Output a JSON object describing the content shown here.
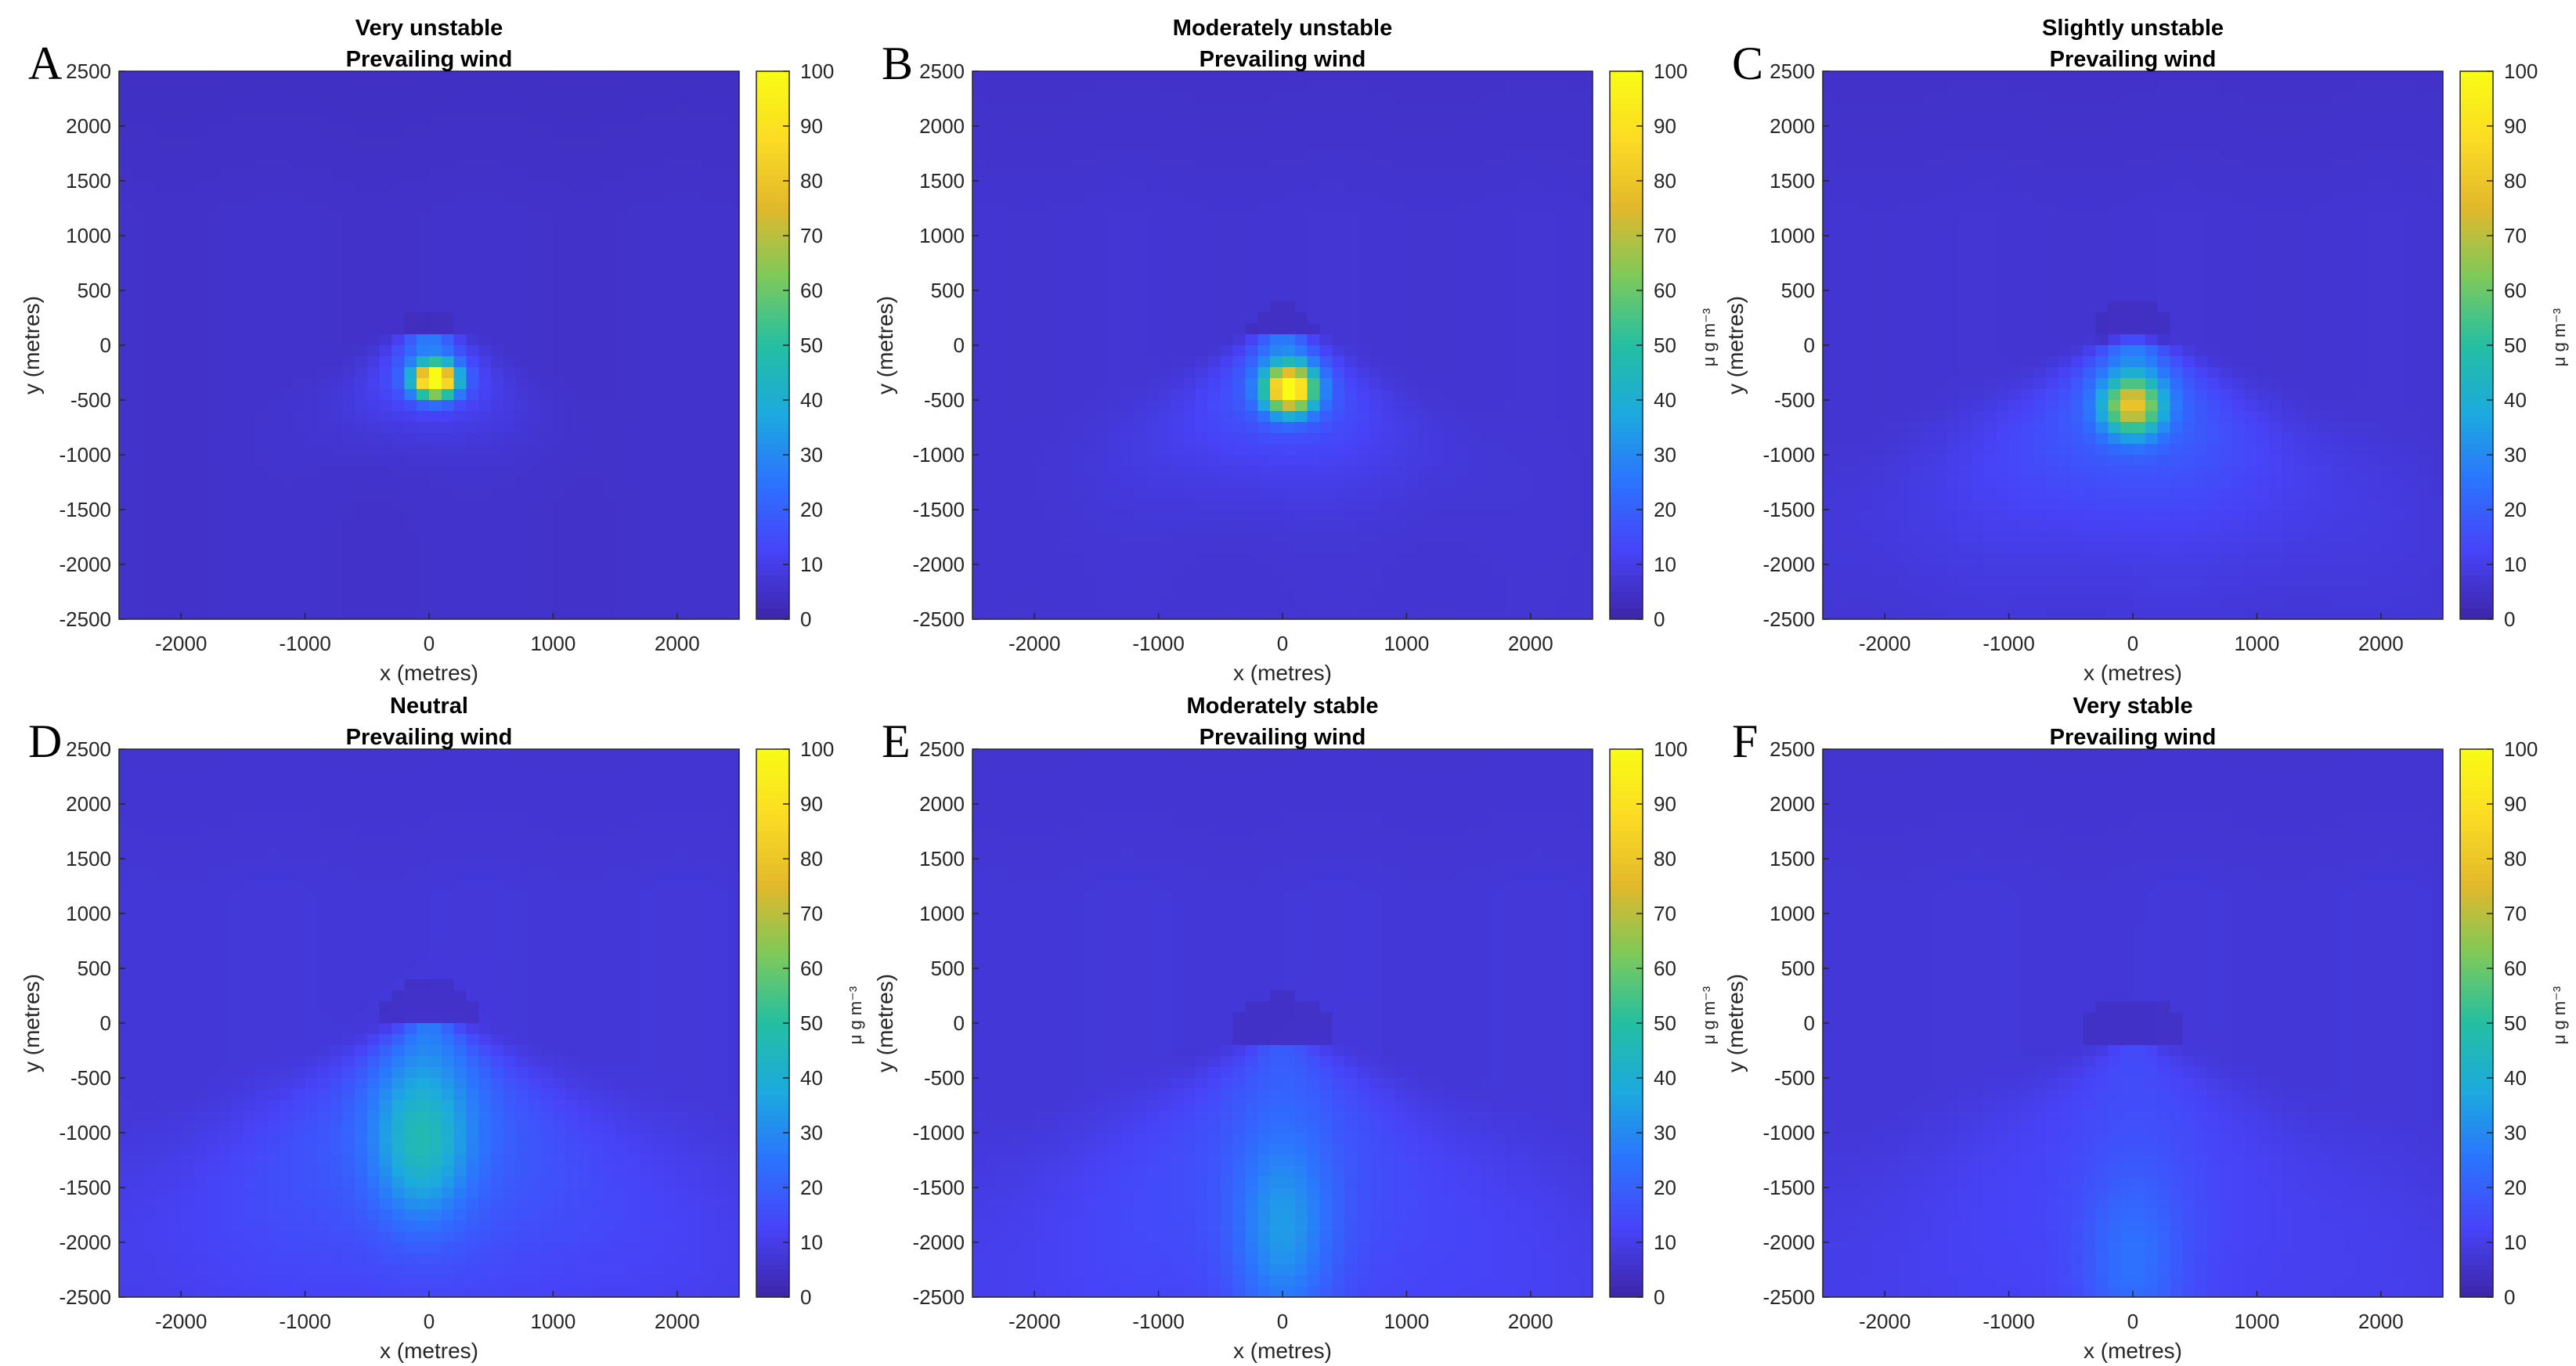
{
  "figure": {
    "colorbar_label": "μ g m⁻³",
    "x_label": "x (metres)",
    "y_label": "y (metres)",
    "colormap": [
      "#3e26a8",
      "#4743f8",
      "#2c73ff",
      "#1caadf",
      "#24bfa2",
      "#7dc95a",
      "#e2b82c",
      "#fbdc24",
      "#f9fb15"
    ]
  },
  "chart_data": [
    {
      "type": "heatmap",
      "letter": "A",
      "title": [
        "Very unstable",
        "Prevailing wind"
      ],
      "xlabel": "x (metres)",
      "ylabel": "y (metres)",
      "xlim": [
        -2500,
        2500
      ],
      "ylim": [
        -2500,
        2500
      ],
      "xticks": [
        -2000,
        -1000,
        0,
        1000,
        2000
      ],
      "yticks": [
        2500,
        2000,
        1500,
        1000,
        500,
        0,
        -500,
        -1000,
        -1500,
        -2000,
        -2500
      ],
      "colorbar": {
        "range": [
          0,
          100
        ],
        "ticks": [
          100,
          90,
          80,
          70,
          60,
          50,
          40,
          30,
          20,
          10,
          0
        ],
        "label": ""
      },
      "field": {
        "background": 4,
        "peak": 100,
        "peak_center": [
          50,
          -320
        ],
        "peak_spread": [
          170,
          150
        ],
        "plume_amp": 22,
        "plume_length": 260,
        "plume_width": 0.5,
        "wake_center": [
          0,
          120
        ],
        "wake_radius": 220
      }
    },
    {
      "type": "heatmap",
      "letter": "B",
      "title": [
        "Moderately unstable",
        "Prevailing wind"
      ],
      "xlabel": "x (metres)",
      "ylabel": "y (metres)",
      "xlim": [
        -2500,
        2500
      ],
      "ylim": [
        -2500,
        2500
      ],
      "xticks": [
        -2000,
        -1000,
        0,
        1000,
        2000
      ],
      "yticks": [
        2500,
        2000,
        1500,
        1000,
        500,
        0,
        -500,
        -1000,
        -1500,
        -2000,
        -2500
      ],
      "colorbar": {
        "range": [
          0,
          100
        ],
        "ticks": [
          100,
          90,
          80,
          70,
          60,
          50,
          40,
          30,
          20,
          10,
          0
        ],
        "label": "μ g m⁻³"
      },
      "field": {
        "background": 5,
        "peak": 88,
        "peak_center": [
          60,
          -400
        ],
        "peak_spread": [
          200,
          210
        ],
        "plume_amp": 20,
        "plume_length": 620,
        "plume_width": 0.62,
        "wake_center": [
          0,
          110
        ],
        "wake_radius": 270
      }
    },
    {
      "type": "heatmap",
      "letter": "C",
      "title": [
        "Slightly unstable",
        "Prevailing wind"
      ],
      "xlabel": "x (metres)",
      "ylabel": "y (metres)",
      "xlim": [
        -2500,
        2500
      ],
      "ylim": [
        -2500,
        2500
      ],
      "xticks": [
        -2000,
        -1000,
        0,
        1000,
        2000
      ],
      "yticks": [
        2500,
        2000,
        1500,
        1000,
        500,
        0,
        -500,
        -1000,
        -1500,
        -2000,
        -2500
      ],
      "colorbar": {
        "range": [
          0,
          100
        ],
        "ticks": [
          100,
          90,
          80,
          70,
          60,
          50,
          40,
          30,
          20,
          10,
          0
        ],
        "label": "μ g m⁻³"
      },
      "field": {
        "background": 5,
        "peak": 58,
        "peak_center": [
          0,
          -550
        ],
        "peak_spread": [
          230,
          260
        ],
        "plume_amp": 20,
        "plume_length": 1100,
        "plume_width": 0.75,
        "wake_center": [
          0,
          60
        ],
        "wake_radius": 330
      }
    },
    {
      "type": "heatmap",
      "letter": "D",
      "title": [
        "Neutral",
        "Prevailing wind"
      ],
      "xlabel": "x (metres)",
      "ylabel": "y (metres)",
      "xlim": [
        -2500,
        2500
      ],
      "ylim": [
        -2500,
        2500
      ],
      "xticks": [
        -2000,
        -1000,
        0,
        1000,
        2000
      ],
      "yticks": [
        2500,
        2000,
        1500,
        1000,
        500,
        0,
        -500,
        -1000,
        -1500,
        -2000,
        -2500
      ],
      "colorbar": {
        "range": [
          0,
          100
        ],
        "ticks": [
          100,
          90,
          80,
          70,
          60,
          50,
          40,
          30,
          20,
          10,
          0
        ],
        "label": "μ g m⁻³"
      },
      "field": {
        "background": 6,
        "peak": 26,
        "peak_center": [
          -60,
          -1100
        ],
        "peak_spread": [
          380,
          700
        ],
        "plume_amp": 17,
        "plume_length": 1900,
        "plume_width": 0.85,
        "wake_center": [
          0,
          0
        ],
        "wake_radius": 420
      }
    },
    {
      "type": "heatmap",
      "letter": "E",
      "title": [
        "Moderately stable",
        "Prevailing wind"
      ],
      "xlabel": "x (metres)",
      "ylabel": "y (metres)",
      "xlim": [
        -2500,
        2500
      ],
      "ylim": [
        -2500,
        2500
      ],
      "xticks": [
        -2000,
        -1000,
        0,
        1000,
        2000
      ],
      "yticks": [
        2500,
        2000,
        1500,
        1000,
        500,
        0,
        -500,
        -1000,
        -1500,
        -2000,
        -2500
      ],
      "colorbar": {
        "range": [
          0,
          100
        ],
        "ticks": [
          100,
          90,
          80,
          70,
          60,
          50,
          40,
          30,
          20,
          10,
          0
        ],
        "label": "μ g m⁻³"
      },
      "field": {
        "background": 6,
        "peak": 19,
        "peak_center": [
          0,
          -1900
        ],
        "peak_spread": [
          380,
          900
        ],
        "plume_amp": 11,
        "plume_length": 2600,
        "plume_width": 0.9,
        "wake_center": [
          0,
          -150
        ],
        "wake_radius": 420
      }
    },
    {
      "type": "heatmap",
      "letter": "F",
      "title": [
        "Very stable",
        "Prevailing wind"
      ],
      "xlabel": "x (metres)",
      "ylabel": "y (metres)",
      "xlim": [
        -2500,
        2500
      ],
      "ylim": [
        -2500,
        2500
      ],
      "xticks": [
        -2000,
        -1000,
        0,
        1000,
        2000
      ],
      "yticks": [
        2500,
        2000,
        1500,
        1000,
        500,
        0,
        -500,
        -1000,
        -1500,
        -2000,
        -2500
      ],
      "colorbar": {
        "range": [
          0,
          100
        ],
        "ticks": [
          100,
          90,
          80,
          70,
          60,
          50,
          40,
          30,
          20,
          10,
          0
        ],
        "label": "μ g m⁻³"
      },
      "field": {
        "background": 6,
        "peak": 12,
        "peak_center": [
          0,
          -2200
        ],
        "peak_spread": [
          420,
          900
        ],
        "plume_amp": 7,
        "plume_length": 3000,
        "plume_width": 0.95,
        "wake_center": [
          0,
          -200
        ],
        "wake_radius": 450
      }
    }
  ]
}
